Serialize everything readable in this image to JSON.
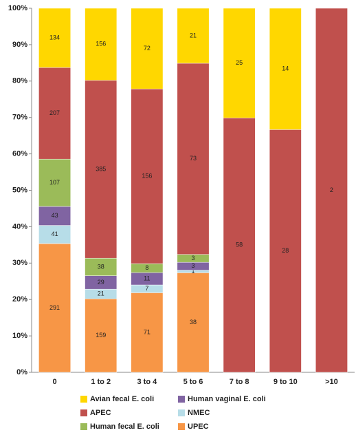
{
  "chart_data": {
    "type": "bar",
    "stacking": "percent",
    "categories": [
      "0",
      "1 to 2",
      "3 to 4",
      "5 to 6",
      "7 to 8",
      "9 to 10",
      ">10"
    ],
    "series": [
      {
        "name": "UPEC",
        "color": "#f79646",
        "values": [
          291,
          159,
          71,
          38,
          null,
          null,
          null
        ]
      },
      {
        "name": "NMEC",
        "color": "#b7dde8",
        "values": [
          41,
          21,
          7,
          1,
          null,
          null,
          null
        ]
      },
      {
        "name": "Human vaginal E. coli",
        "color": "#8064a2",
        "values": [
          43,
          29,
          11,
          3,
          null,
          null,
          null
        ]
      },
      {
        "name": "Human fecal E. coli",
        "color": "#9bbb59",
        "values": [
          107,
          38,
          8,
          3,
          null,
          null,
          null
        ]
      },
      {
        "name": "APEC",
        "color": "#c0504d",
        "values": [
          207,
          385,
          156,
          73,
          58,
          28,
          2
        ]
      },
      {
        "name": "Avian fecal E. coli",
        "color": "#ffd700",
        "values": [
          134,
          156,
          72,
          21,
          25,
          14,
          null
        ]
      }
    ],
    "legend_order": [
      5,
      2,
      4,
      1,
      3,
      0
    ],
    "ylim": [
      0,
      100
    ],
    "yticks": [
      {
        "value": 0,
        "label": "0%"
      },
      {
        "value": 10,
        "label": "10%"
      },
      {
        "value": 20,
        "label": "20%"
      },
      {
        "value": 30,
        "label": "30%"
      },
      {
        "value": 40,
        "label": "40%"
      },
      {
        "value": 50,
        "label": "50%"
      },
      {
        "value": 60,
        "label": "60%"
      },
      {
        "value": 70,
        "label": "70%"
      },
      {
        "value": 80,
        "label": "80%"
      },
      {
        "value": 90,
        "label": "90%"
      },
      {
        "value": 100,
        "label": "100%"
      }
    ],
    "grid": false
  }
}
